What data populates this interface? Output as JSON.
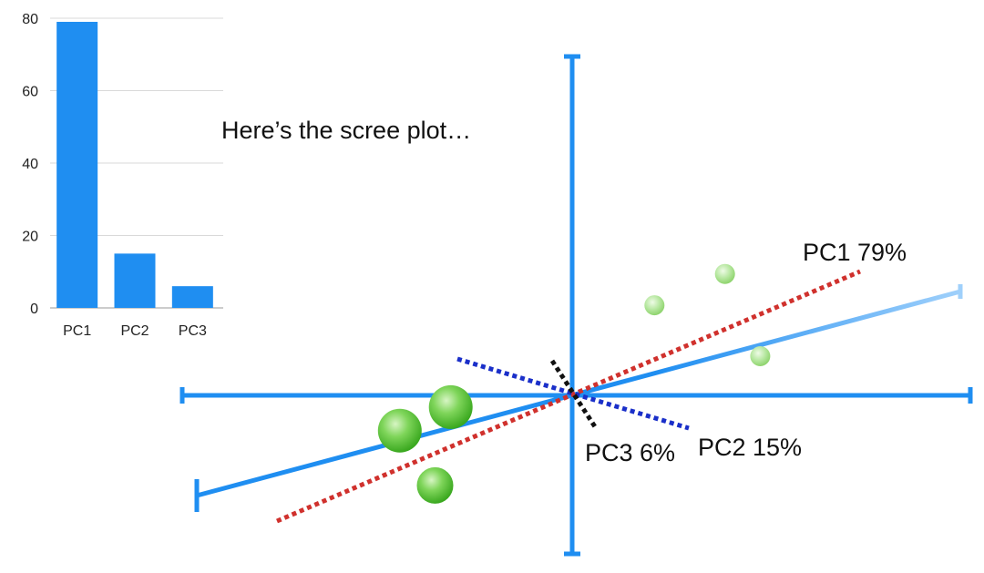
{
  "caption": "Here’s the scree plot…",
  "chart_data": [
    {
      "type": "bar",
      "categories": [
        "PC1",
        "PC2",
        "PC3"
      ],
      "values": [
        79,
        15,
        6
      ],
      "ylim": [
        0,
        80
      ],
      "yticks": [
        "0",
        "20",
        "40",
        "60",
        "80"
      ],
      "grid": true,
      "color": "#1f8ef1"
    },
    {
      "type": "scatter",
      "description_free": true,
      "points": [
        {
          "x": -0.44,
          "y": -0.09,
          "size": "large"
        },
        {
          "x": -0.31,
          "y": -0.03,
          "size": "large"
        },
        {
          "x": -0.35,
          "y": -0.23,
          "size": "medium"
        },
        {
          "x": 0.21,
          "y": 0.23,
          "size": "small"
        },
        {
          "x": 0.39,
          "y": 0.31,
          "size": "small"
        },
        {
          "x": 0.48,
          "y": 0.1,
          "size": "small"
        }
      ],
      "components": [
        {
          "label": "PC1 79%",
          "color": "#d0312d"
        },
        {
          "label": "PC2 15%",
          "color": "#1a2fc9"
        },
        {
          "label": "PC3 6%",
          "color": "#111111"
        }
      ],
      "axis_color": "#1f8ef1",
      "point_color": "#5cc23a"
    }
  ]
}
